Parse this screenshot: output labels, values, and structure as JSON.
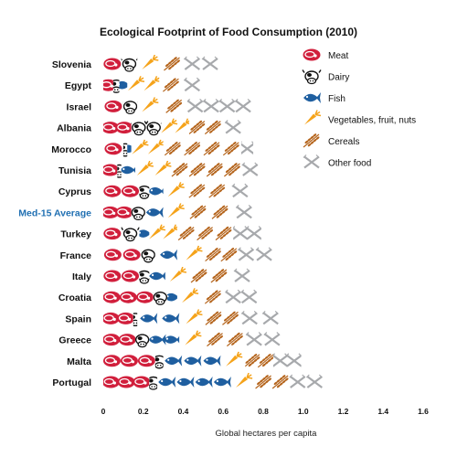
{
  "chart_data": {
    "type": "bar",
    "title": "Ecological Footprint of Food Consumption (2010)",
    "xlabel": "Global hectares per capita",
    "ylabel": "",
    "xlim": [
      0,
      1.6
    ],
    "xticks": [
      "0",
      "0.2",
      "0.4",
      "0.6",
      "0.8",
      "1.0",
      "1.2",
      "1.4",
      "1.6"
    ],
    "stacked": true,
    "orientation": "horizontal",
    "legend_position": "right",
    "highlight_category": "Med-15 Average",
    "categories": [
      "Slovenia",
      "Egypt",
      "Israel",
      "Albania",
      "Morocco",
      "Tunisia",
      "Cyprus",
      "Med-15 Average",
      "Turkey",
      "France",
      "Italy",
      "Croatia",
      "Spain",
      "Greece",
      "Malta",
      "Portugal"
    ],
    "series": [
      {
        "name": "Meat",
        "color": "#d11f3c",
        "icon": "steak-icon",
        "values": [
          0.09,
          0.05,
          0.1,
          0.14,
          0.1,
          0.07,
          0.18,
          0.14,
          0.09,
          0.19,
          0.18,
          0.25,
          0.15,
          0.16,
          0.26,
          0.23
        ]
      },
      {
        "name": "Dairy",
        "color": "#111111",
        "icon": "cow-icon",
        "values": [
          0.08,
          0.03,
          0.07,
          0.15,
          0.02,
          0.02,
          0.05,
          0.07,
          0.09,
          0.07,
          0.05,
          0.07,
          0.02,
          0.07,
          0.04,
          0.04
        ]
      },
      {
        "name": "Fish",
        "color": "#1f5fa0",
        "icon": "fish-icon",
        "values": [
          0.0,
          0.04,
          0.0,
          0.0,
          0.02,
          0.07,
          0.07,
          0.09,
          0.05,
          0.13,
          0.08,
          0.05,
          0.22,
          0.15,
          0.29,
          0.37
        ]
      },
      {
        "name": "Vegetables, fruit, nuts",
        "color": "#f5a31a",
        "icon": "carrot-icon",
        "values": [
          0.12,
          0.16,
          0.12,
          0.14,
          0.16,
          0.18,
          0.12,
          0.12,
          0.14,
          0.12,
          0.12,
          0.12,
          0.12,
          0.13,
          0.12,
          0.12
        ]
      },
      {
        "name": "Cereals",
        "color": "#b5651d",
        "icon": "wheat-icon",
        "values": [
          0.11,
          0.12,
          0.13,
          0.16,
          0.39,
          0.35,
          0.2,
          0.22,
          0.28,
          0.16,
          0.2,
          0.12,
          0.17,
          0.2,
          0.14,
          0.17
        ]
      },
      {
        "name": "Other food",
        "color": "#a7a9ac",
        "icon": "fork-knife-icon",
        "values": [
          0.18,
          0.09,
          0.32,
          0.12,
          0.06,
          0.09,
          0.13,
          0.13,
          0.14,
          0.18,
          0.13,
          0.16,
          0.21,
          0.18,
          0.14,
          0.17
        ]
      }
    ]
  }
}
